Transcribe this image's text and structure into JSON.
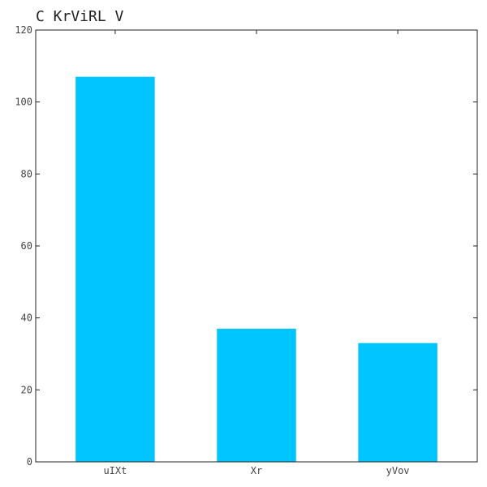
{
  "chart_data": {
    "type": "bar",
    "title": "C  KrViRL V",
    "xlabel": "",
    "ylabel": "",
    "categories": [
      "uIXt",
      "Xr",
      "yVov"
    ],
    "values": [
      107,
      37,
      33
    ],
    "ylim": [
      0,
      120
    ],
    "yticks": [
      0,
      20,
      40,
      60,
      80,
      100,
      120
    ],
    "bar_color": "#00c5ff",
    "grid": false,
    "legend": "none"
  }
}
